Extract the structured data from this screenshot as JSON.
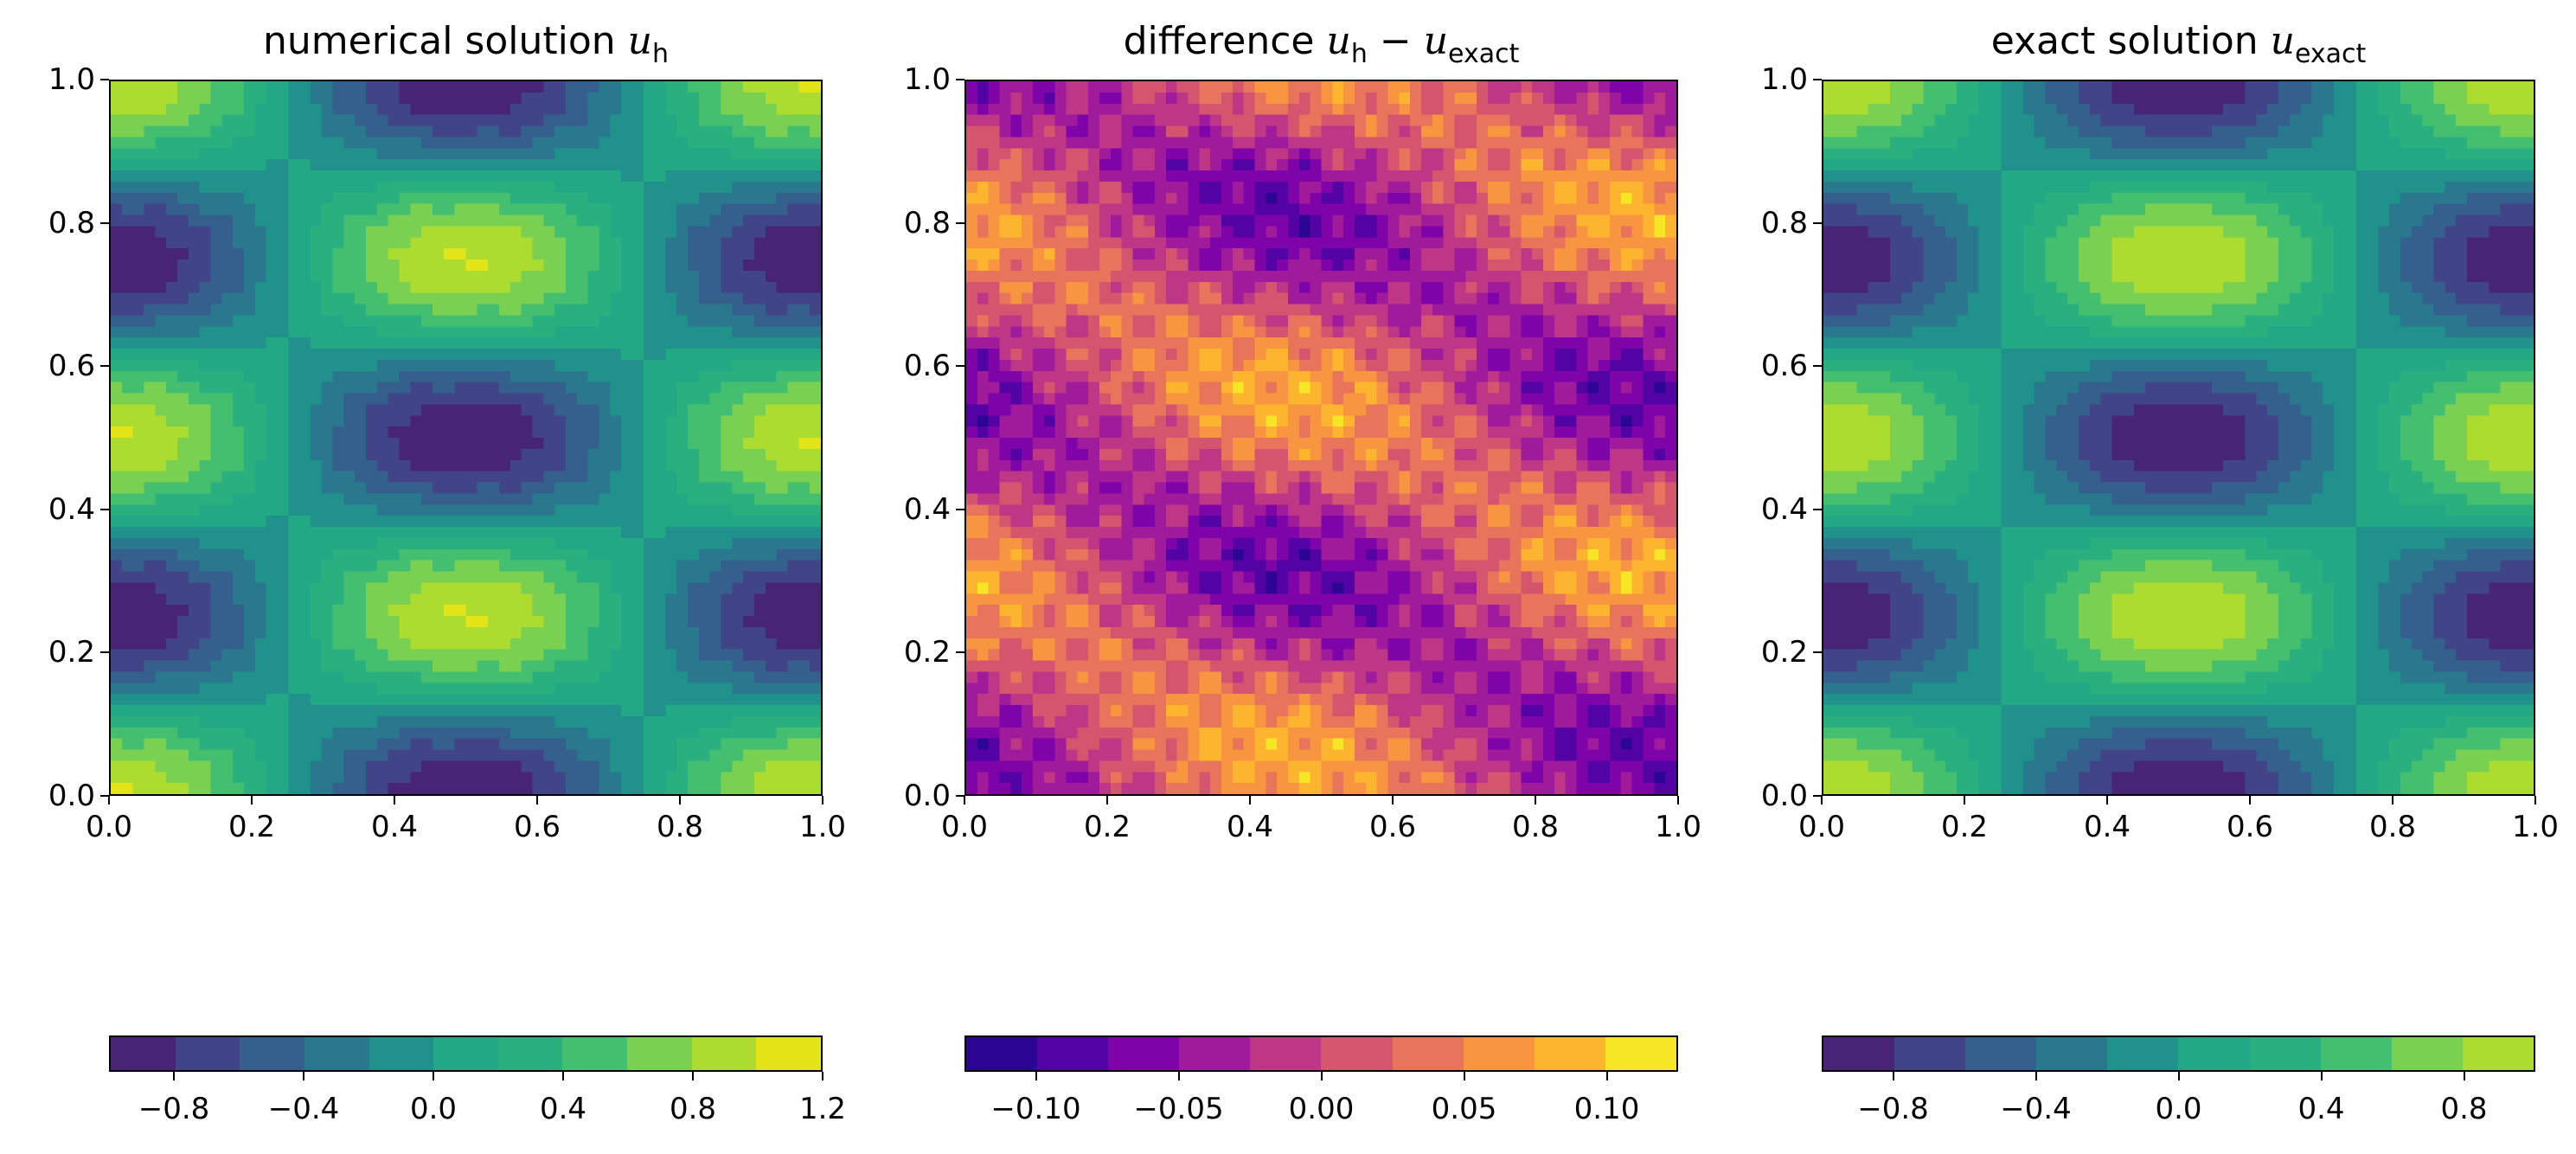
{
  "chart_data": [
    {
      "type": "heatmap",
      "title_text": "numerical solution ",
      "title_var": "u",
      "title_sub": "h",
      "xlim": [
        0,
        1
      ],
      "ylim": [
        0,
        1
      ],
      "xticks": [
        "0.0",
        "0.2",
        "0.4",
        "0.6",
        "0.8",
        "1.0"
      ],
      "yticks": [
        "0.0",
        "0.2",
        "0.4",
        "0.6",
        "0.8",
        "1.0"
      ],
      "levels": [
        -1.0,
        -0.8,
        -0.6,
        -0.4,
        -0.2,
        0.0,
        0.2,
        0.4,
        0.6,
        0.8,
        1.0,
        1.2
      ],
      "colorbar_ticks": [
        "−0.8",
        "−0.4",
        "0.0",
        "0.4",
        "0.8",
        "1.2"
      ],
      "colorbar_tick_values": [
        -0.8,
        -0.4,
        0.0,
        0.4,
        0.8,
        1.2
      ],
      "colors": [
        "#482475",
        "#414487",
        "#355f8d",
        "#2a788e",
        "#21918c",
        "#22a884",
        "#2ab07f",
        "#44bf70",
        "#7ad151",
        "#addc30",
        "#e3e418"
      ]
    },
    {
      "type": "heatmap",
      "title_text": "difference ",
      "title_var": "u",
      "title_sub": "h",
      "title_minus": " − ",
      "title_var2": "u",
      "title_sub2": "exact",
      "xlim": [
        0,
        1
      ],
      "ylim": [
        0,
        1
      ],
      "xticks": [
        "0.0",
        "0.2",
        "0.4",
        "0.6",
        "0.8",
        "1.0"
      ],
      "yticks": [
        "0.0",
        "0.2",
        "0.4",
        "0.6",
        "0.8",
        "1.0"
      ],
      "levels": [
        -0.125,
        -0.1,
        -0.075,
        -0.05,
        -0.025,
        0.0,
        0.025,
        0.05,
        0.075,
        0.1,
        0.125
      ],
      "colorbar_ticks": [
        "−0.10",
        "−0.05",
        "0.00",
        "0.05",
        "0.10"
      ],
      "colorbar_tick_values": [
        -0.1,
        -0.05,
        0.0,
        0.05,
        0.1
      ],
      "colors": [
        "#2c0594",
        "#5302a3",
        "#7e03a8",
        "#a01a9c",
        "#bd3786",
        "#d5546e",
        "#e8745c",
        "#f89540",
        "#fdb42f",
        "#f6e626"
      ]
    },
    {
      "type": "heatmap",
      "title_text": "exact solution ",
      "title_var": "u",
      "title_sub": "exact",
      "xlim": [
        0,
        1
      ],
      "ylim": [
        0,
        1
      ],
      "xticks": [
        "0.0",
        "0.2",
        "0.4",
        "0.6",
        "0.8",
        "1.0"
      ],
      "yticks": [
        "0.0",
        "0.2",
        "0.4",
        "0.6",
        "0.8",
        "1.0"
      ],
      "levels": [
        -1.0,
        -0.8,
        -0.6,
        -0.4,
        -0.2,
        0.0,
        0.2,
        0.4,
        0.6,
        0.8,
        1.0
      ],
      "colorbar_ticks": [
        "−0.8",
        "−0.4",
        "0.0",
        "0.4",
        "0.8"
      ],
      "colorbar_tick_values": [
        -0.8,
        -0.4,
        0.0,
        0.4,
        0.8
      ],
      "colors": [
        "#482475",
        "#414487",
        "#355f8d",
        "#2a788e",
        "#21918c",
        "#22a884",
        "#2ab07f",
        "#44bf70",
        "#7ad151",
        "#addc30"
      ]
    }
  ]
}
